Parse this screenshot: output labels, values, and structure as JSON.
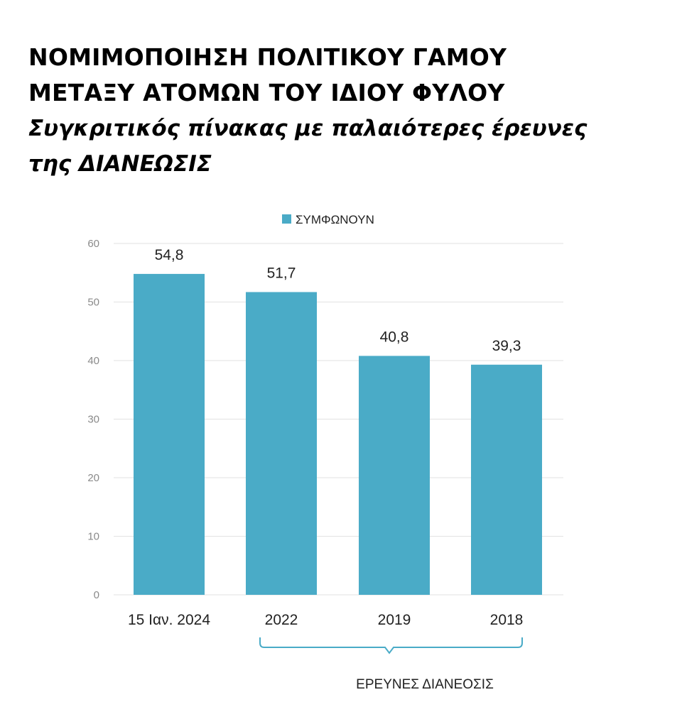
{
  "header": {
    "title_lines": [
      "ΝΟΜΙΜΟΠΟΙΗΣΗ ΠΟΛΙΤΙΚΟΥ ΓΑΜΟΥ",
      "ΜΕΤΑΞΥ ΑΤΟΜΩΝ ΤΟΥ ΙΔΙΟΥ ΦΥΛΟΥ"
    ],
    "subtitle_lines": [
      "Συγκριτικός πίνακας με παλαιότερες έρευνες",
      "της ΔΙΑΝΕΩΣΙΣ"
    ]
  },
  "colors": {
    "bar": "#4aabc7",
    "grid": "#e2e2e2",
    "bracket": "#4aabc7"
  },
  "chart_data": {
    "type": "bar",
    "categories": [
      "15 Ιαν. 2024",
      "2022",
      "2019",
      "2018"
    ],
    "series": [
      {
        "name": "ΣΥΜΦΩΝΟΥΝ",
        "values": [
          54.8,
          51.7,
          40.8,
          39.3
        ]
      }
    ],
    "data_labels": [
      "54,8",
      "51,7",
      "40,8",
      "39,3"
    ],
    "ylim": [
      0,
      60
    ],
    "yticks": [
      0,
      10,
      20,
      30,
      40,
      50,
      60
    ],
    "grid": true,
    "legend": {
      "position": "top",
      "entries": [
        "ΣΥΜΦΩΝΟΥΝ"
      ]
    },
    "group_annotation": {
      "label": "ΕΡΕΥΝΕΣ ΔΙΑΝΕΟΣΙΣ",
      "categories": [
        "2022",
        "2019",
        "2018"
      ]
    }
  }
}
